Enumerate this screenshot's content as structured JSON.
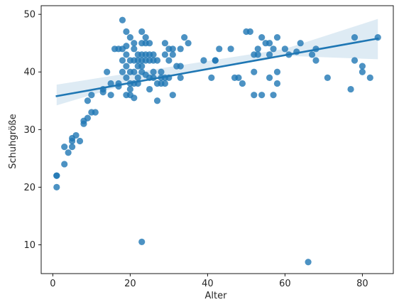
{
  "chart_data": {
    "type": "scatter",
    "xlabel": "Alter",
    "ylabel": "Schuhgröße",
    "xlim": [
      -3,
      88
    ],
    "ylim": [
      5,
      51.5
    ],
    "x_ticks": [
      0,
      20,
      40,
      60,
      80
    ],
    "y_ticks": [
      10,
      20,
      30,
      40,
      50
    ],
    "grid": false,
    "colors": {
      "points": "#1f77b4",
      "regression_line": "#1f77b4",
      "confidence_band": "#1f77b4",
      "axes": "#000000"
    },
    "series": [
      {
        "kind": "points",
        "points": [
          {
            "x": 1,
            "y": 22
          },
          {
            "x": 1,
            "y": 22
          },
          {
            "x": 1,
            "y": 20
          },
          {
            "x": 3,
            "y": 27
          },
          {
            "x": 3,
            "y": 24
          },
          {
            "x": 4,
            "y": 26
          },
          {
            "x": 5,
            "y": 27
          },
          {
            "x": 5,
            "y": 28
          },
          {
            "x": 5,
            "y": 28.5
          },
          {
            "x": 6,
            "y": 29
          },
          {
            "x": 7,
            "y": 28
          },
          {
            "x": 8,
            "y": 31
          },
          {
            "x": 8,
            "y": 31.5
          },
          {
            "x": 9,
            "y": 32
          },
          {
            "x": 9,
            "y": 35
          },
          {
            "x": 10,
            "y": 33
          },
          {
            "x": 10,
            "y": 36
          },
          {
            "x": 11,
            "y": 33
          },
          {
            "x": 13,
            "y": 36.5
          },
          {
            "x": 13,
            "y": 37
          },
          {
            "x": 14,
            "y": 40
          },
          {
            "x": 15,
            "y": 36
          },
          {
            "x": 15,
            "y": 38
          },
          {
            "x": 16,
            "y": 44
          },
          {
            "x": 17,
            "y": 37.5
          },
          {
            "x": 17,
            "y": 38
          },
          {
            "x": 17,
            "y": 44
          },
          {
            "x": 18,
            "y": 49
          },
          {
            "x": 18,
            "y": 44
          },
          {
            "x": 18,
            "y": 42
          },
          {
            "x": 18,
            "y": 40
          },
          {
            "x": 19,
            "y": 47
          },
          {
            "x": 19,
            "y": 44.5
          },
          {
            "x": 19,
            "y": 43
          },
          {
            "x": 19,
            "y": 41
          },
          {
            "x": 19,
            "y": 39
          },
          {
            "x": 19,
            "y": 36
          },
          {
            "x": 20,
            "y": 46
          },
          {
            "x": 20,
            "y": 42
          },
          {
            "x": 20,
            "y": 40
          },
          {
            "x": 20,
            "y": 38
          },
          {
            "x": 20,
            "y": 37
          },
          {
            "x": 20,
            "y": 36
          },
          {
            "x": 21,
            "y": 45
          },
          {
            "x": 21,
            "y": 44
          },
          {
            "x": 21,
            "y": 42
          },
          {
            "x": 21,
            "y": 40
          },
          {
            "x": 21,
            "y": 38
          },
          {
            "x": 21,
            "y": 35.5
          },
          {
            "x": 22,
            "y": 43
          },
          {
            "x": 22,
            "y": 42
          },
          {
            "x": 22,
            "y": 41
          },
          {
            "x": 22,
            "y": 39
          },
          {
            "x": 22,
            "y": 38
          },
          {
            "x": 23,
            "y": 47
          },
          {
            "x": 23,
            "y": 45
          },
          {
            "x": 23,
            "y": 43
          },
          {
            "x": 23,
            "y": 42
          },
          {
            "x": 23,
            "y": 41
          },
          {
            "x": 23,
            "y": 40
          },
          {
            "x": 23,
            "y": 10.5
          },
          {
            "x": 24,
            "y": 46
          },
          {
            "x": 24,
            "y": 45
          },
          {
            "x": 24,
            "y": 43
          },
          {
            "x": 24,
            "y": 42
          },
          {
            "x": 24,
            "y": 39.5
          },
          {
            "x": 25,
            "y": 45
          },
          {
            "x": 25,
            "y": 43
          },
          {
            "x": 25,
            "y": 42
          },
          {
            "x": 25,
            "y": 39
          },
          {
            "x": 25,
            "y": 37
          },
          {
            "x": 26,
            "y": 43
          },
          {
            "x": 26,
            "y": 42
          },
          {
            "x": 26,
            "y": 40
          },
          {
            "x": 26,
            "y": 39
          },
          {
            "x": 27,
            "y": 42
          },
          {
            "x": 27,
            "y": 38
          },
          {
            "x": 27,
            "y": 35
          },
          {
            "x": 28,
            "y": 40
          },
          {
            "x": 28,
            "y": 39
          },
          {
            "x": 28,
            "y": 38
          },
          {
            "x": 29,
            "y": 45
          },
          {
            "x": 29,
            "y": 43
          },
          {
            "x": 29,
            "y": 39
          },
          {
            "x": 29,
            "y": 38
          },
          {
            "x": 30,
            "y": 44
          },
          {
            "x": 30,
            "y": 42
          },
          {
            "x": 30,
            "y": 39
          },
          {
            "x": 31,
            "y": 44
          },
          {
            "x": 31,
            "y": 43
          },
          {
            "x": 31,
            "y": 36
          },
          {
            "x": 32,
            "y": 41
          },
          {
            "x": 33,
            "y": 44
          },
          {
            "x": 33,
            "y": 41
          },
          {
            "x": 33,
            "y": 39
          },
          {
            "x": 34,
            "y": 46
          },
          {
            "x": 35,
            "y": 45
          },
          {
            "x": 39,
            "y": 42
          },
          {
            "x": 41,
            "y": 39
          },
          {
            "x": 42,
            "y": 42
          },
          {
            "x": 42,
            "y": 42
          },
          {
            "x": 43,
            "y": 44
          },
          {
            "x": 46,
            "y": 44
          },
          {
            "x": 47,
            "y": 39
          },
          {
            "x": 48,
            "y": 39
          },
          {
            "x": 49,
            "y": 38
          },
          {
            "x": 50,
            "y": 47
          },
          {
            "x": 51,
            "y": 47
          },
          {
            "x": 52,
            "y": 43
          },
          {
            "x": 52,
            "y": 40
          },
          {
            "x": 52,
            "y": 36
          },
          {
            "x": 53,
            "y": 44
          },
          {
            "x": 53,
            "y": 43
          },
          {
            "x": 54,
            "y": 46
          },
          {
            "x": 54,
            "y": 36
          },
          {
            "x": 55,
            "y": 45
          },
          {
            "x": 56,
            "y": 45
          },
          {
            "x": 56,
            "y": 43
          },
          {
            "x": 56,
            "y": 39
          },
          {
            "x": 57,
            "y": 44
          },
          {
            "x": 57,
            "y": 36
          },
          {
            "x": 58,
            "y": 46
          },
          {
            "x": 58,
            "y": 40
          },
          {
            "x": 58,
            "y": 38
          },
          {
            "x": 60,
            "y": 44
          },
          {
            "x": 61,
            "y": 43
          },
          {
            "x": 63,
            "y": 43.5
          },
          {
            "x": 64,
            "y": 45
          },
          {
            "x": 66,
            "y": 7
          },
          {
            "x": 67,
            "y": 43
          },
          {
            "x": 68,
            "y": 44
          },
          {
            "x": 68,
            "y": 42
          },
          {
            "x": 71,
            "y": 39
          },
          {
            "x": 77,
            "y": 37
          },
          {
            "x": 78,
            "y": 46
          },
          {
            "x": 78,
            "y": 42
          },
          {
            "x": 80,
            "y": 41
          },
          {
            "x": 80,
            "y": 40
          },
          {
            "x": 82,
            "y": 39
          },
          {
            "x": 84,
            "y": 46
          }
        ]
      },
      {
        "kind": "regression_line",
        "x": [
          1,
          84
        ],
        "y": [
          35.8,
          45.8
        ]
      },
      {
        "kind": "confidence_band",
        "x": [
          1,
          20,
          40,
          60,
          84
        ],
        "lower": [
          34.2,
          38.0,
          40.6,
          42.8,
          42.2
        ],
        "upper": [
          37.8,
          39.8,
          41.9,
          44.0,
          49.2
        ]
      }
    ]
  }
}
